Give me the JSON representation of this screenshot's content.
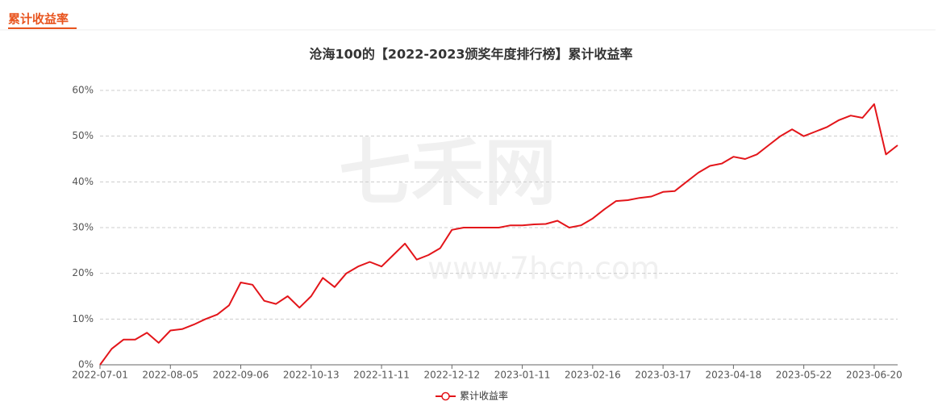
{
  "tab": "累计收益率",
  "watermark": {
    "brand": "七禾网",
    "url": "www.7hcn.com"
  },
  "chart_data": {
    "type": "line",
    "title": "沧海100的【2022-2023颁奖年度排行榜】累计收益率",
    "categories": [
      "2022-07-01",
      null,
      null,
      null,
      null,
      null,
      "2022-08-05",
      null,
      null,
      null,
      null,
      null,
      "2022-09-06",
      null,
      null,
      null,
      null,
      null,
      "2022-10-13",
      null,
      null,
      null,
      null,
      null,
      "2022-11-11",
      null,
      null,
      null,
      null,
      null,
      "2022-12-12",
      null,
      null,
      null,
      null,
      null,
      "2023-01-11",
      null,
      null,
      null,
      null,
      null,
      "2023-02-16",
      null,
      null,
      null,
      null,
      null,
      "2023-03-17",
      null,
      null,
      null,
      null,
      null,
      "2023-04-18",
      null,
      null,
      null,
      null,
      null,
      "2023-05-22",
      null,
      null,
      null,
      null,
      null,
      "2023-06-20",
      null,
      null
    ],
    "series": [
      {
        "name": "累计收益率",
        "color": "#e3151a",
        "values": [
          0,
          3.5,
          5.5,
          5.5,
          7,
          4.8,
          7.5,
          7.8,
          8.8,
          10,
          11,
          13,
          18,
          17.5,
          14,
          13.3,
          15,
          12.5,
          15,
          19,
          17,
          20,
          21.5,
          22.5,
          21.5,
          24,
          26.5,
          23,
          24,
          25.5,
          29.5,
          30,
          30,
          30,
          30,
          30.5,
          30.5,
          30.7,
          30.8,
          31.5,
          30,
          30.5,
          32,
          34,
          35.8,
          36,
          36.5,
          36.8,
          37.8,
          38,
          40,
          42,
          43.5,
          44,
          45.5,
          45,
          46,
          48,
          50,
          51.5,
          50,
          51,
          52,
          53.5,
          54.5,
          54,
          57,
          46,
          48
        ]
      }
    ],
    "ylim": [
      0,
      60
    ],
    "yticks": [
      {
        "value": 0,
        "label": "0%"
      },
      {
        "value": 10,
        "label": "10%"
      },
      {
        "value": 20,
        "label": "20%"
      },
      {
        "value": 30,
        "label": "30%"
      },
      {
        "value": 40,
        "label": "40%"
      },
      {
        "value": 50,
        "label": "50%"
      },
      {
        "value": 60,
        "label": "60%"
      }
    ],
    "grid": true,
    "legend": "bottom"
  }
}
